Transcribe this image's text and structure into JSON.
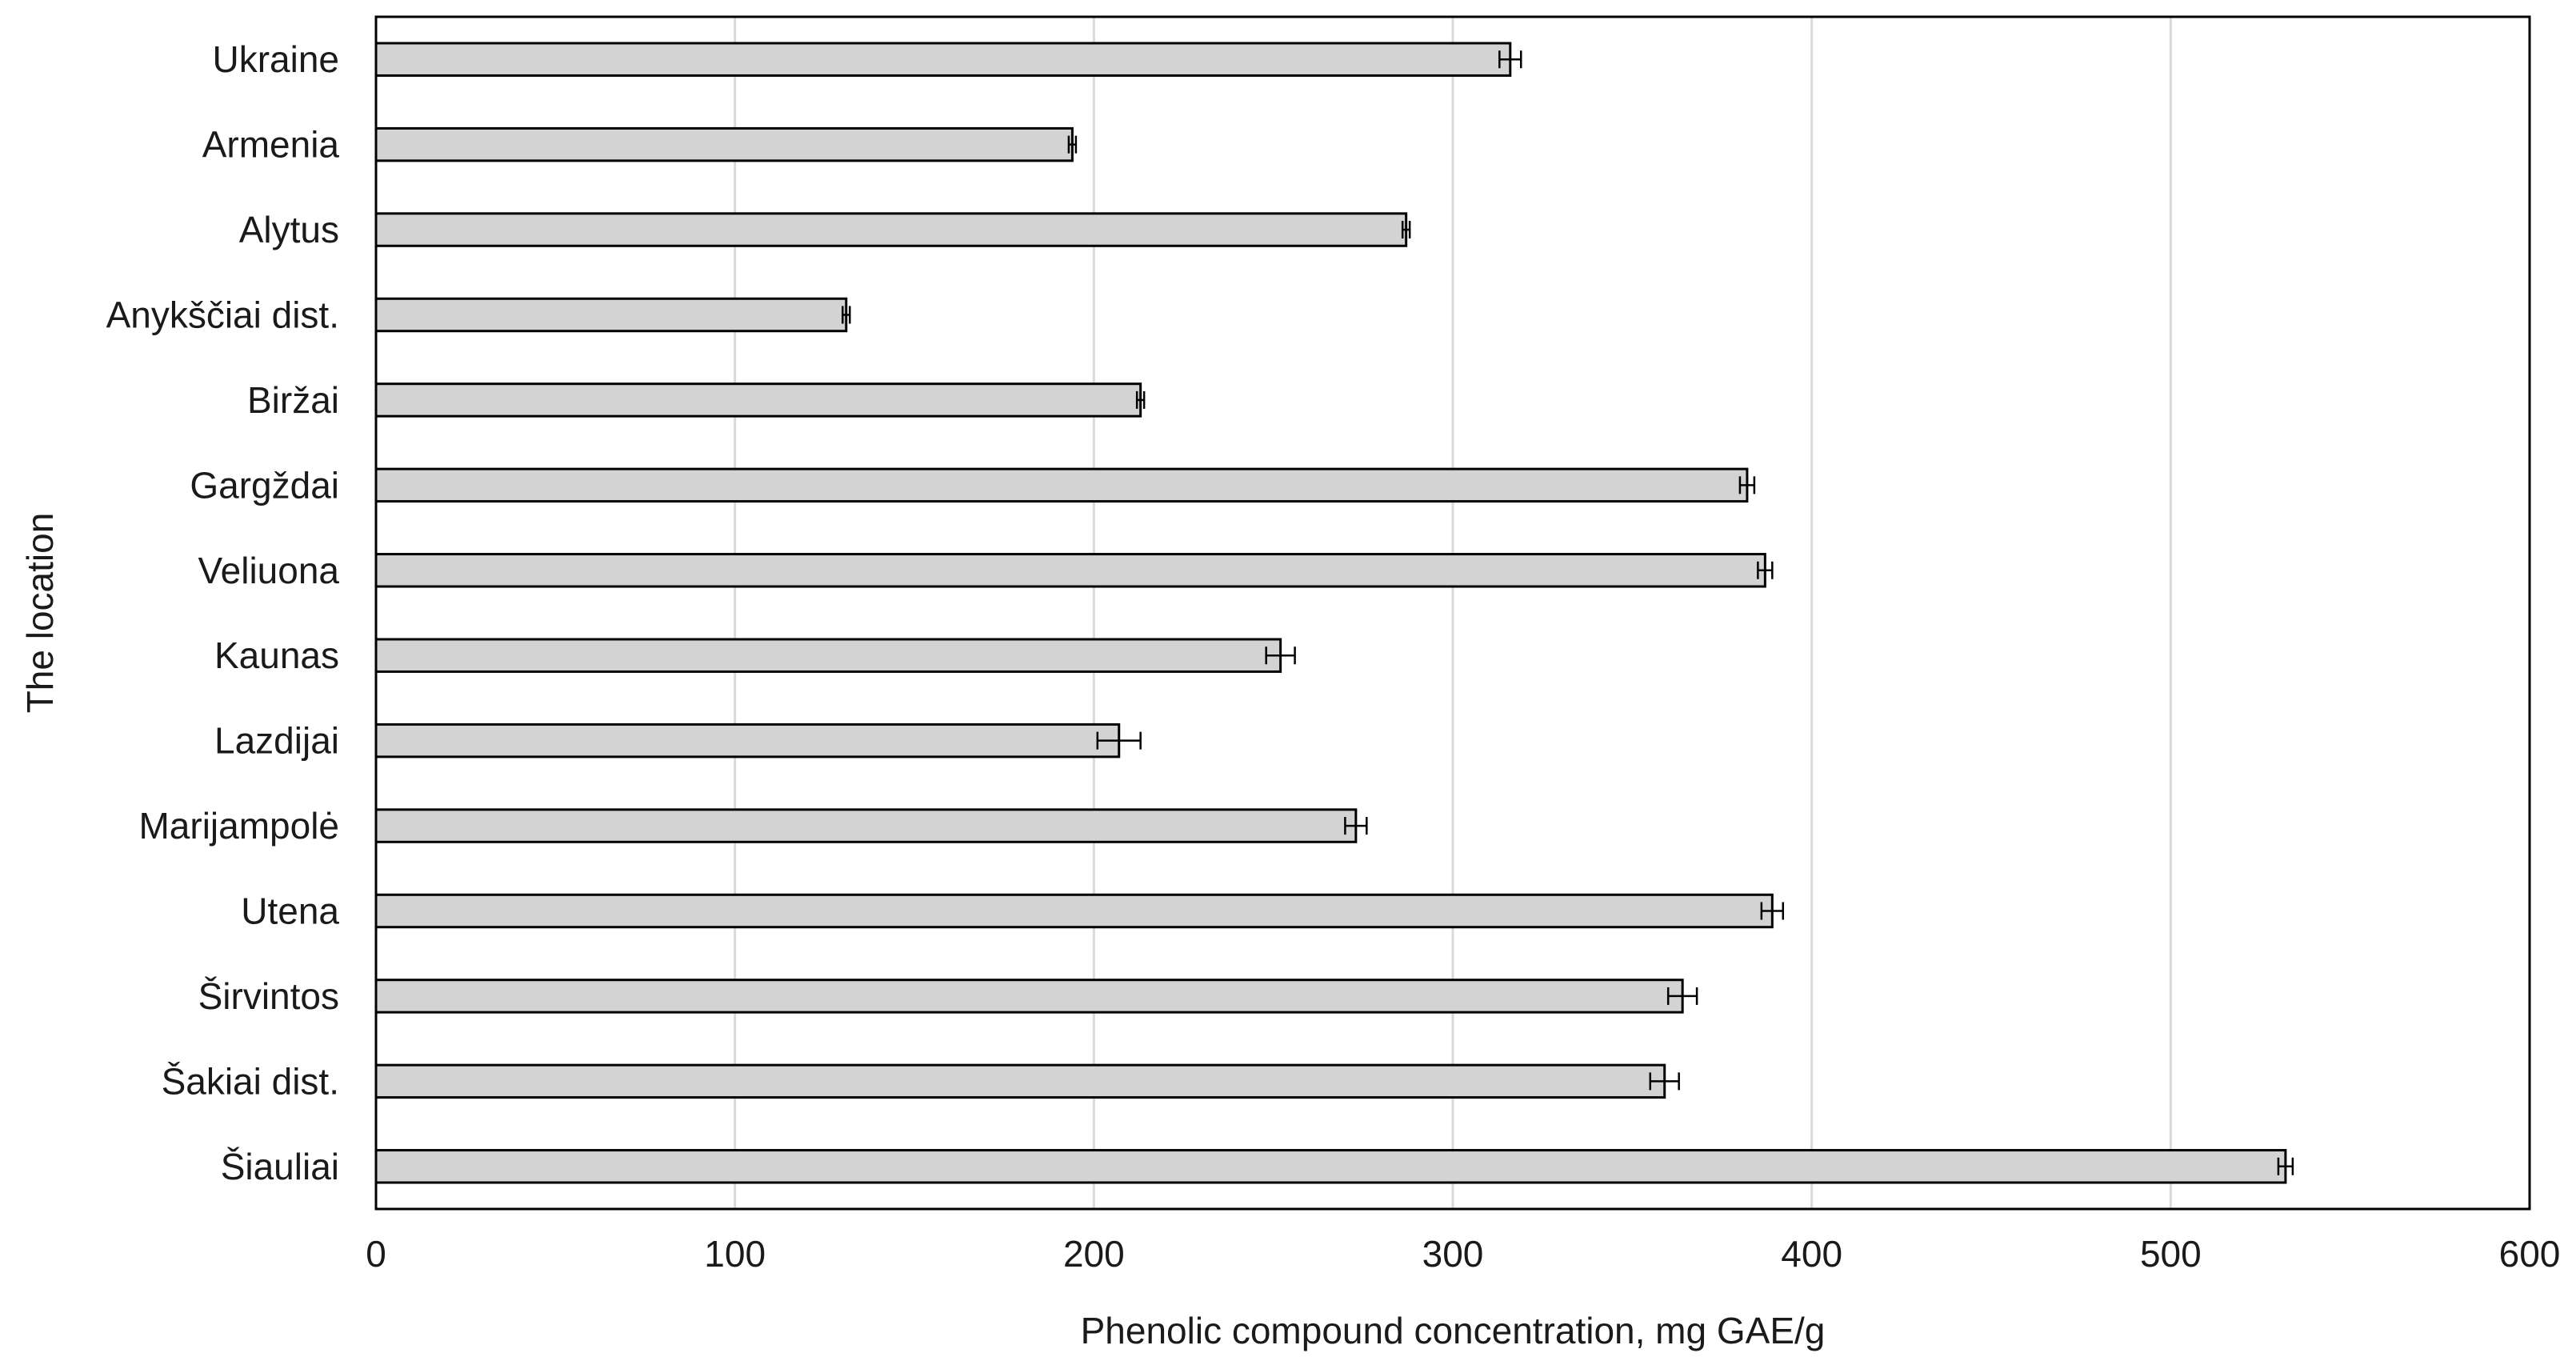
{
  "chart_data": {
    "type": "bar",
    "orientation": "horizontal",
    "categories": [
      "Ukraine",
      "Armenia",
      "Alytus",
      "Anykščiai dist.",
      "Biržai",
      "Gargždai",
      "Veliuona",
      "Kaunas",
      "Lazdijai",
      "Marijampolė",
      "Utena",
      "Širvintos",
      "Šakiai dist.",
      "Šiauliai"
    ],
    "values": [
      316,
      194,
      287,
      131,
      213,
      382,
      387,
      252,
      207,
      273,
      389,
      364,
      359,
      532
    ],
    "errors": [
      3,
      1,
      1,
      1,
      1,
      2,
      2,
      4,
      6,
      3,
      3,
      4,
      4,
      2
    ],
    "xlabel": "Phenolic compound concentration, mg GAE/g",
    "ylabel": "The location",
    "xlim": [
      0,
      600
    ],
    "xticks": [
      "0",
      "100",
      "200",
      "300",
      "400",
      "500",
      "600"
    ],
    "grid": true,
    "bar_color": "#d3d3d3",
    "bar_edge_color": "#000000",
    "grid_color": "#d9d9d9"
  }
}
